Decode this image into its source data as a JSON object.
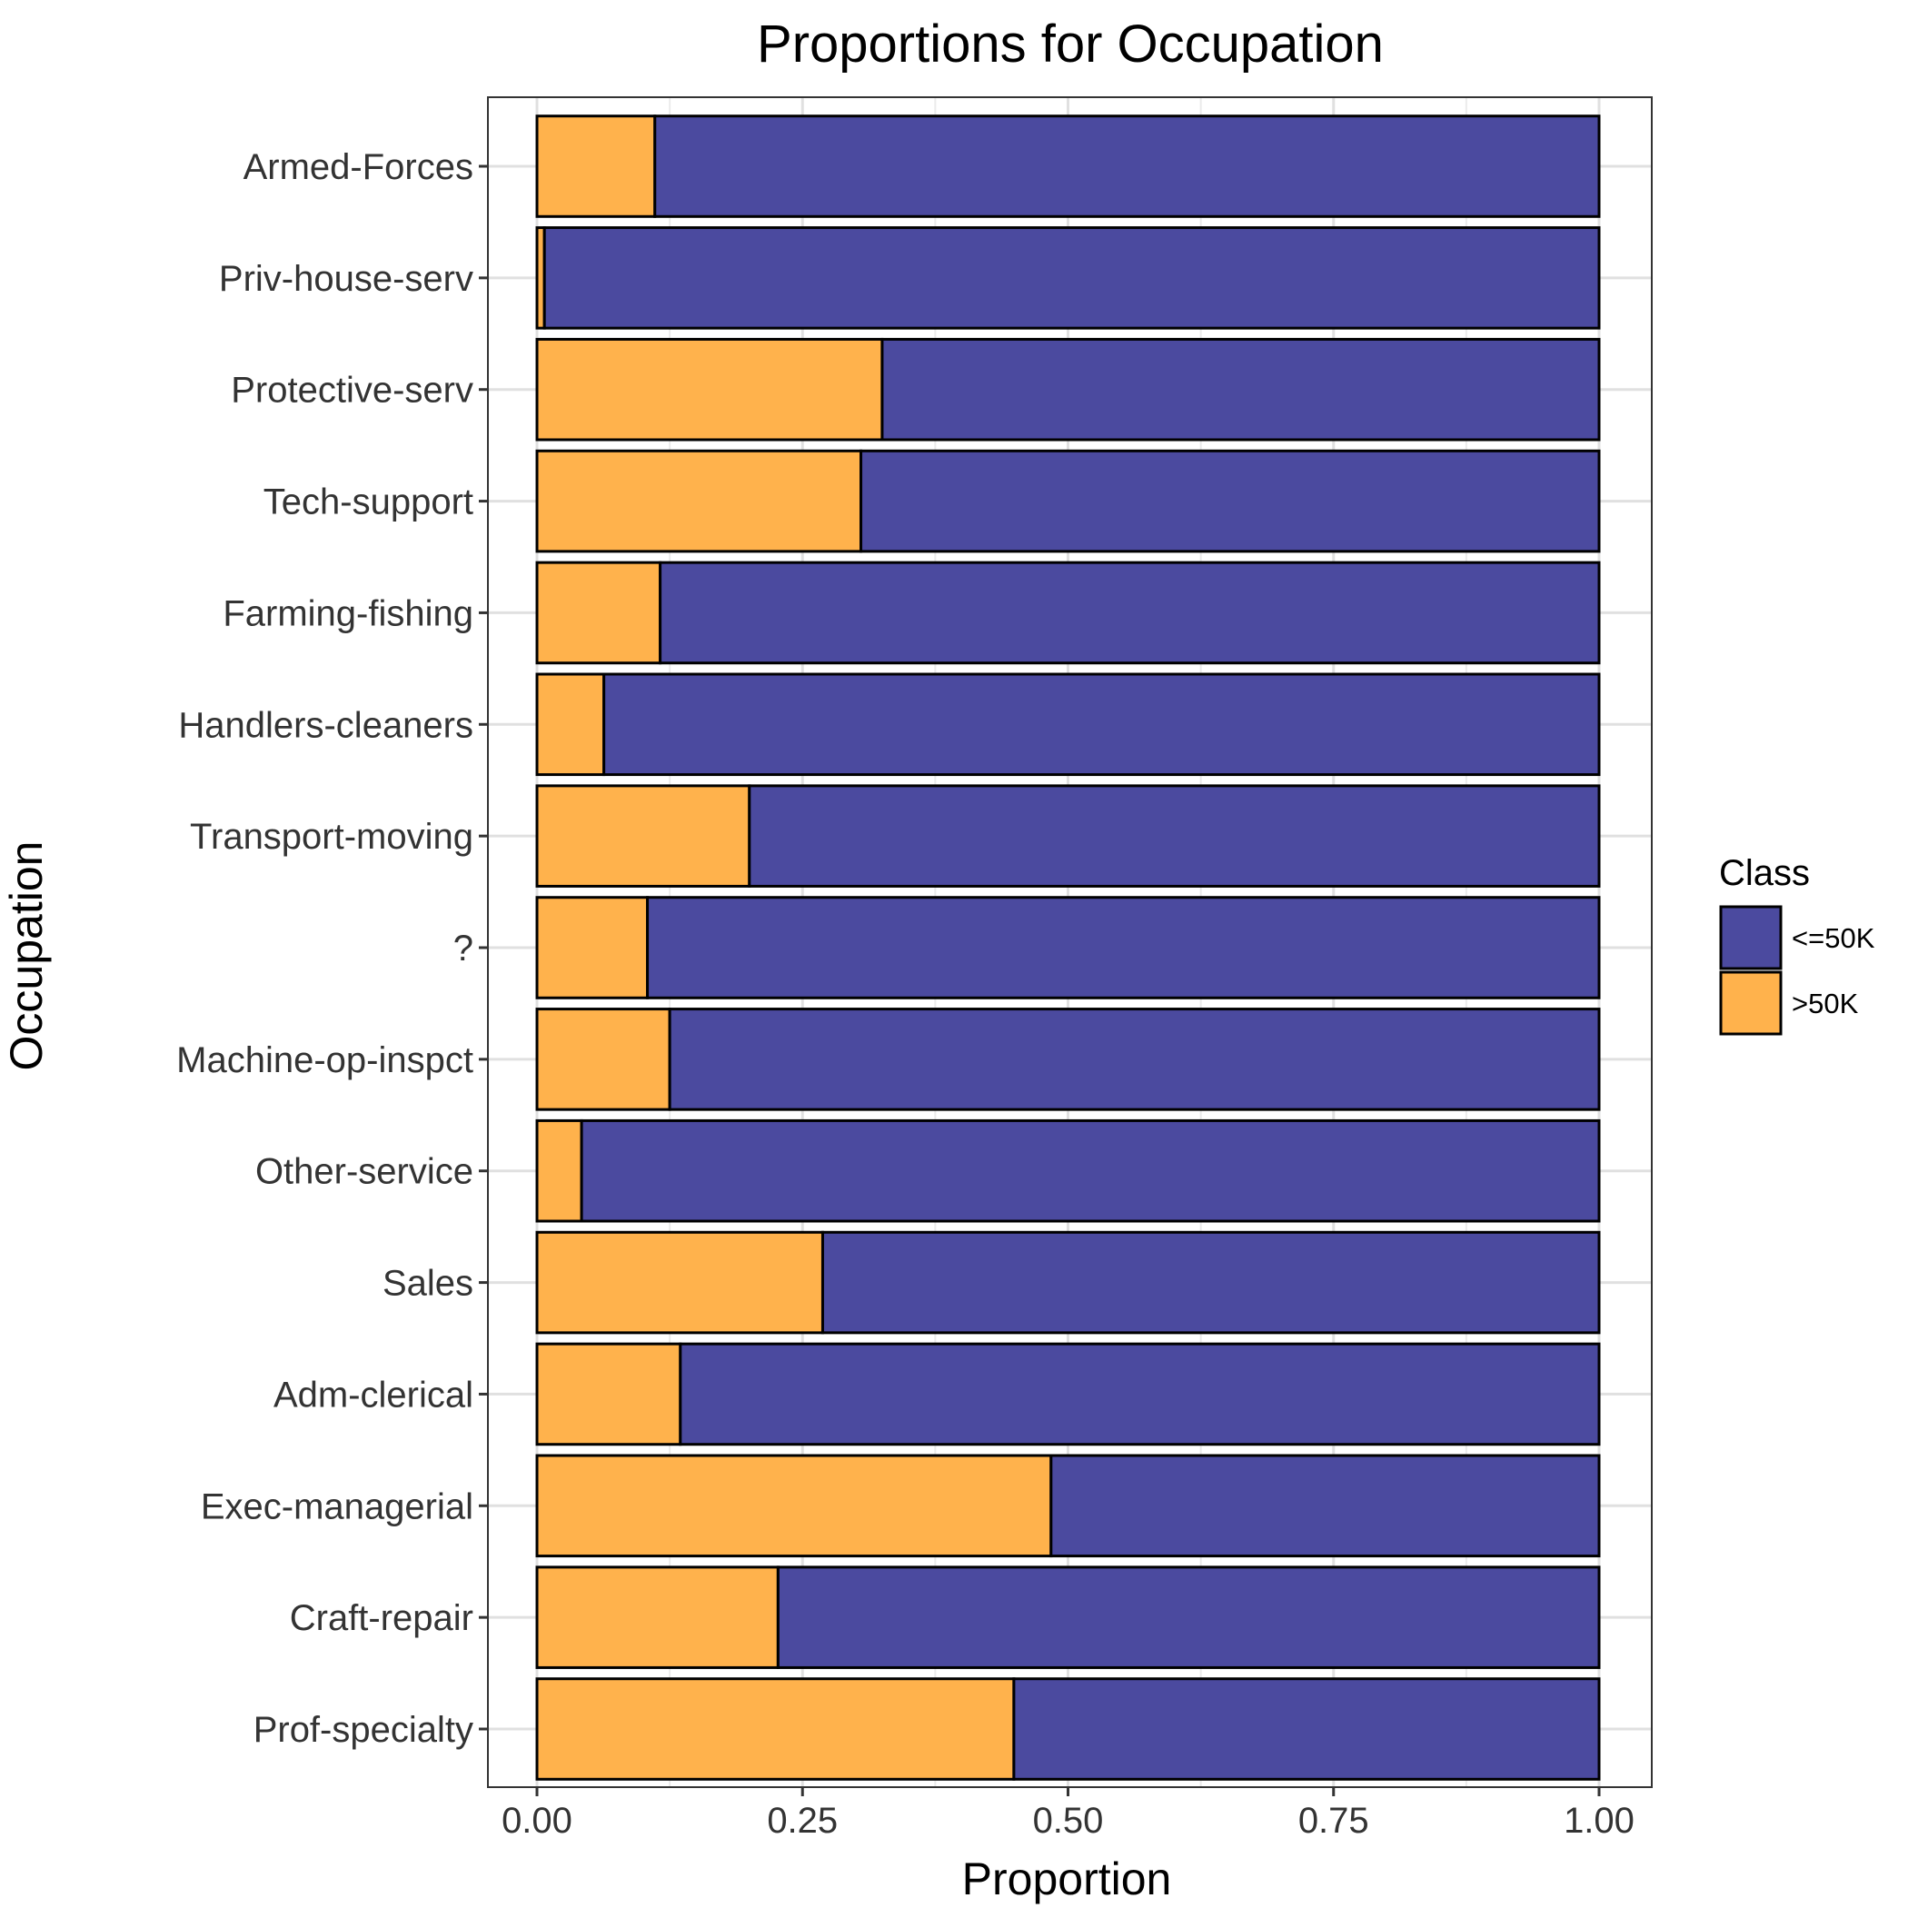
{
  "chart_data": {
    "type": "bar",
    "orientation": "horizontal",
    "stacked": true,
    "title": "Proportions for Occupation",
    "xlabel": "Proportion",
    "ylabel": "Occupation",
    "xlim": [
      0,
      1
    ],
    "xticks": [
      "0.00",
      "0.25",
      "0.50",
      "0.75",
      "1.00"
    ],
    "grid": true,
    "legend": {
      "title": "Class",
      "position": "right"
    },
    "categories": [
      "Armed-Forces",
      "Priv-house-serv",
      "Protective-serv",
      "Tech-support",
      "Farming-fishing",
      "Handlers-cleaners",
      "Transport-moving",
      "?",
      "Machine-op-inspct",
      "Other-service",
      "Sales",
      "Adm-clerical",
      "Exec-managerial",
      "Craft-repair",
      "Prof-specialty"
    ],
    "series": [
      {
        "name": ">50K",
        "color": "#ffb24c",
        "values": [
          0.111,
          0.007,
          0.325,
          0.305,
          0.116,
          0.063,
          0.2,
          0.104,
          0.125,
          0.042,
          0.269,
          0.135,
          0.484,
          0.227,
          0.449
        ]
      },
      {
        "name": "<=50K",
        "color": "#4b4a9f",
        "values": [
          0.889,
          0.993,
          0.675,
          0.695,
          0.884,
          0.937,
          0.8,
          0.896,
          0.875,
          0.958,
          0.731,
          0.865,
          0.516,
          0.773,
          0.551
        ]
      }
    ],
    "legend_order": [
      "<=50K",
      ">50K"
    ]
  }
}
